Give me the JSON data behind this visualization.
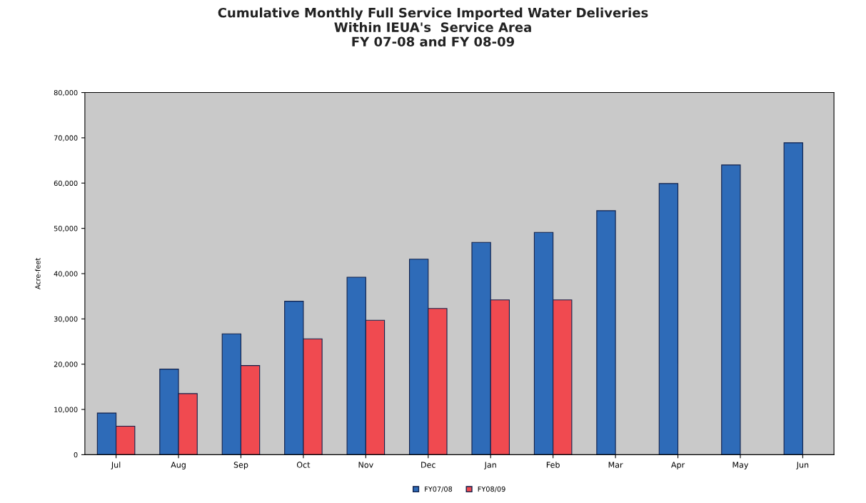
{
  "chart_data": {
    "type": "bar",
    "title": "Cumulative Monthly Full Service Imported Water Deliveries\nWithin IEUA's  Service Area\nFY 07-08 and FY 08-09",
    "ylabel": "Acre-feet",
    "categories": [
      "Jul",
      "Aug",
      "Sep",
      "Oct",
      "Nov",
      "Dec",
      "Jan",
      "Feb",
      "Mar",
      "Apr",
      "May",
      "Jun"
    ],
    "series": [
      {
        "name": "FY07/08",
        "color": "#2e6bb8",
        "values": [
          9200,
          18900,
          26700,
          33900,
          39200,
          43200,
          46900,
          49100,
          53900,
          59900,
          64000,
          68900
        ]
      },
      {
        "name": "FY08/09",
        "color": "#f04a50",
        "values": [
          6300,
          13500,
          19700,
          25600,
          29700,
          32300,
          34200,
          34200,
          null,
          null,
          null,
          null
        ]
      }
    ],
    "ylim": [
      0,
      80000
    ],
    "yticks": [
      {
        "value": 0,
        "label": "0"
      },
      {
        "value": 10000,
        "label": "10,000"
      },
      {
        "value": 20000,
        "label": "20,000"
      },
      {
        "value": 30000,
        "label": "30,000"
      },
      {
        "value": 40000,
        "label": "40,000"
      },
      {
        "value": 50000,
        "label": "50,000"
      },
      {
        "value": 60000,
        "label": "60,000"
      },
      {
        "value": 70000,
        "label": "70,000"
      },
      {
        "value": 80000,
        "label": "80,000"
      }
    ],
    "grid": false,
    "legend": "bottom"
  }
}
